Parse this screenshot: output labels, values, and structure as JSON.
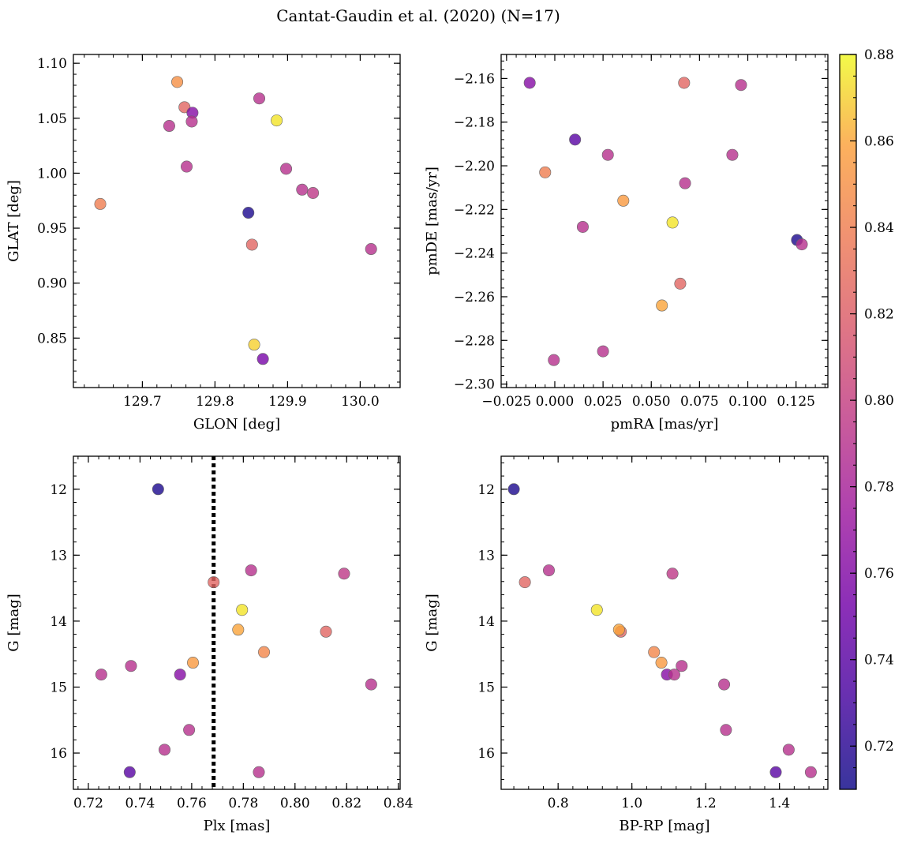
{
  "chart_data": {
    "type": "scatter",
    "title": "Cantat-Gaudin et al. (2020) (N=17)",
    "colorbar": {
      "ticks": [
        "0.72",
        "0.74",
        "0.76",
        "0.78",
        "0.80",
        "0.82",
        "0.84",
        "0.86",
        "0.88"
      ],
      "range": [
        0.71,
        0.88
      ],
      "colormap": "plasma"
    },
    "panels": [
      {
        "id": "glon-glat",
        "xlabel": "GLON [deg]",
        "ylabel": "GLAT [deg]",
        "xlim": [
          129.605,
          130.055
        ],
        "ylim": [
          0.805,
          1.108
        ],
        "xticks": [
          [
            "129.7",
            129.7
          ],
          [
            "129.8",
            129.8
          ],
          [
            "129.9",
            129.9
          ],
          [
            "130.0",
            130.0
          ]
        ],
        "yticks": [
          [
            "0.85",
            0.85
          ],
          [
            "0.90",
            0.9
          ],
          [
            "0.95",
            0.95
          ],
          [
            "1.00",
            1.0
          ],
          [
            "1.05",
            1.05
          ],
          [
            "1.10",
            1.1
          ]
        ],
        "invert_y": false,
        "vline": null,
        "points": [
          {
            "x": 129.748,
            "y": 1.083,
            "c": 0.85
          },
          {
            "x": 129.758,
            "y": 1.06,
            "c": 0.825
          },
          {
            "x": 129.769,
            "y": 1.055,
            "c": 0.762
          },
          {
            "x": 129.737,
            "y": 1.043,
            "c": 0.79
          },
          {
            "x": 129.768,
            "y": 1.047,
            "c": 0.79
          },
          {
            "x": 129.761,
            "y": 1.006,
            "c": 0.79
          },
          {
            "x": 129.642,
            "y": 0.972,
            "c": 0.84
          },
          {
            "x": 129.861,
            "y": 1.068,
            "c": 0.79
          },
          {
            "x": 129.885,
            "y": 1.048,
            "c": 0.875
          },
          {
            "x": 129.898,
            "y": 1.004,
            "c": 0.79
          },
          {
            "x": 129.92,
            "y": 0.985,
            "c": 0.79
          },
          {
            "x": 129.935,
            "y": 0.982,
            "c": 0.795
          },
          {
            "x": 129.846,
            "y": 0.964,
            "c": 0.715
          },
          {
            "x": 129.851,
            "y": 0.935,
            "c": 0.825
          },
          {
            "x": 130.015,
            "y": 0.931,
            "c": 0.79
          },
          {
            "x": 129.854,
            "y": 0.844,
            "c": 0.87
          },
          {
            "x": 129.866,
            "y": 0.831,
            "c": 0.755
          }
        ]
      },
      {
        "id": "pmra-pmde",
        "xlabel": "pmRA [mas/yr]",
        "ylabel": "pmDE [mas/yr]",
        "xlim": [
          -0.0278,
          0.1415
        ],
        "ylim": [
          -2.3016,
          -2.149
        ],
        "xticks": [
          [
            "−0.025",
            -0.025
          ],
          [
            "0.000",
            0.0
          ],
          [
            "0.025",
            0.025
          ],
          [
            "0.050",
            0.05
          ],
          [
            "0.075",
            0.075
          ],
          [
            "0.100",
            0.1
          ],
          [
            "0.125",
            0.125
          ]
        ],
        "yticks": [
          [
            "−2.30",
            -2.3
          ],
          [
            "−2.28",
            -2.28
          ],
          [
            "−2.26",
            -2.26
          ],
          [
            "−2.24",
            -2.24
          ],
          [
            "−2.22",
            -2.22
          ],
          [
            "−2.20",
            -2.2
          ],
          [
            "−2.18",
            -2.18
          ],
          [
            "−2.16",
            -2.16
          ]
        ],
        "invert_y": false,
        "vline": null,
        "points": [
          {
            "x": -0.013,
            "y": -2.162,
            "c": 0.762
          },
          {
            "x": 0.067,
            "y": -2.162,
            "c": 0.825
          },
          {
            "x": 0.0965,
            "y": -2.163,
            "c": 0.79
          },
          {
            "x": 0.0105,
            "y": -2.188,
            "c": 0.74
          },
          {
            "x": 0.0275,
            "y": -2.195,
            "c": 0.79
          },
          {
            "x": 0.092,
            "y": -2.195,
            "c": 0.79
          },
          {
            "x": -0.005,
            "y": -2.203,
            "c": 0.84
          },
          {
            "x": 0.0675,
            "y": -2.208,
            "c": 0.79
          },
          {
            "x": 0.0355,
            "y": -2.216,
            "c": 0.855
          },
          {
            "x": 0.061,
            "y": -2.226,
            "c": 0.875
          },
          {
            "x": 0.0145,
            "y": -2.228,
            "c": 0.79
          },
          {
            "x": 0.1255,
            "y": -2.234,
            "c": 0.715
          },
          {
            "x": 0.128,
            "y": -2.236,
            "c": 0.79
          },
          {
            "x": 0.065,
            "y": -2.254,
            "c": 0.825
          },
          {
            "x": 0.0555,
            "y": -2.264,
            "c": 0.86
          },
          {
            "x": 0.025,
            "y": -2.285,
            "c": 0.79
          },
          {
            "x": -0.0005,
            "y": -2.289,
            "c": 0.79
          }
        ]
      },
      {
        "id": "plx-g",
        "xlabel": "Plx [mas]",
        "ylabel": "G [mag]",
        "xlim": [
          0.7142,
          0.8407
        ],
        "ylim": [
          11.5,
          16.55
        ],
        "xticks": [
          [
            "0.72",
            0.72
          ],
          [
            "0.74",
            0.74
          ],
          [
            "0.76",
            0.76
          ],
          [
            "0.78",
            0.78
          ],
          [
            "0.80",
            0.8
          ],
          [
            "0.82",
            0.82
          ],
          [
            "0.84",
            0.84
          ]
        ],
        "yticks": [
          [
            "12",
            12
          ],
          [
            "13",
            13
          ],
          [
            "14",
            14
          ],
          [
            "15",
            15
          ],
          [
            "16",
            16
          ]
        ],
        "invert_y": true,
        "vline": 0.7685,
        "points": [
          {
            "x": 0.747,
            "y": 12.0,
            "c": 0.715
          },
          {
            "x": 0.783,
            "y": 13.23,
            "c": 0.79
          },
          {
            "x": 0.819,
            "y": 13.28,
            "c": 0.795
          },
          {
            "x": 0.7685,
            "y": 13.41,
            "c": 0.825
          },
          {
            "x": 0.7795,
            "y": 13.83,
            "c": 0.875
          },
          {
            "x": 0.778,
            "y": 14.13,
            "c": 0.86
          },
          {
            "x": 0.812,
            "y": 14.16,
            "c": 0.825
          },
          {
            "x": 0.788,
            "y": 14.47,
            "c": 0.845
          },
          {
            "x": 0.7605,
            "y": 14.63,
            "c": 0.855
          },
          {
            "x": 0.7365,
            "y": 14.68,
            "c": 0.79
          },
          {
            "x": 0.725,
            "y": 14.81,
            "c": 0.79
          },
          {
            "x": 0.7555,
            "y": 14.81,
            "c": 0.762
          },
          {
            "x": 0.8295,
            "y": 14.96,
            "c": 0.79
          },
          {
            "x": 0.759,
            "y": 15.65,
            "c": 0.79
          },
          {
            "x": 0.7495,
            "y": 15.95,
            "c": 0.79
          },
          {
            "x": 0.736,
            "y": 16.29,
            "c": 0.74
          },
          {
            "x": 0.786,
            "y": 16.29,
            "c": 0.79
          }
        ]
      },
      {
        "id": "bprp-g",
        "xlabel": "BP-RP [mag]",
        "ylabel": "G [mag]",
        "xlim": [
          0.6456,
          1.5312
        ],
        "ylim": [
          11.5,
          16.55
        ],
        "xticks": [
          [
            "0.8",
            0.8
          ],
          [
            "1.0",
            1.0
          ],
          [
            "1.2",
            1.2
          ],
          [
            "1.4",
            1.4
          ]
        ],
        "yticks": [
          [
            "12",
            12
          ],
          [
            "13",
            13
          ],
          [
            "14",
            14
          ],
          [
            "15",
            15
          ],
          [
            "16",
            16
          ]
        ],
        "invert_y": true,
        "vline": null,
        "points": [
          {
            "x": 0.68,
            "y": 12.0,
            "c": 0.715
          },
          {
            "x": 0.775,
            "y": 13.23,
            "c": 0.79
          },
          {
            "x": 0.71,
            "y": 13.41,
            "c": 0.825
          },
          {
            "x": 1.11,
            "y": 13.28,
            "c": 0.795
          },
          {
            "x": 0.905,
            "y": 13.83,
            "c": 0.875
          },
          {
            "x": 0.97,
            "y": 14.16,
            "c": 0.825
          },
          {
            "x": 0.965,
            "y": 14.13,
            "c": 0.86
          },
          {
            "x": 1.06,
            "y": 14.47,
            "c": 0.845
          },
          {
            "x": 1.08,
            "y": 14.63,
            "c": 0.855
          },
          {
            "x": 1.135,
            "y": 14.68,
            "c": 0.79
          },
          {
            "x": 1.095,
            "y": 14.81,
            "c": 0.762
          },
          {
            "x": 1.115,
            "y": 14.81,
            "c": 0.79
          },
          {
            "x": 1.25,
            "y": 14.96,
            "c": 0.79
          },
          {
            "x": 1.255,
            "y": 15.65,
            "c": 0.79
          },
          {
            "x": 1.425,
            "y": 15.95,
            "c": 0.79
          },
          {
            "x": 1.39,
            "y": 16.29,
            "c": 0.74
          },
          {
            "x": 1.485,
            "y": 16.29,
            "c": 0.79
          }
        ]
      }
    ]
  }
}
